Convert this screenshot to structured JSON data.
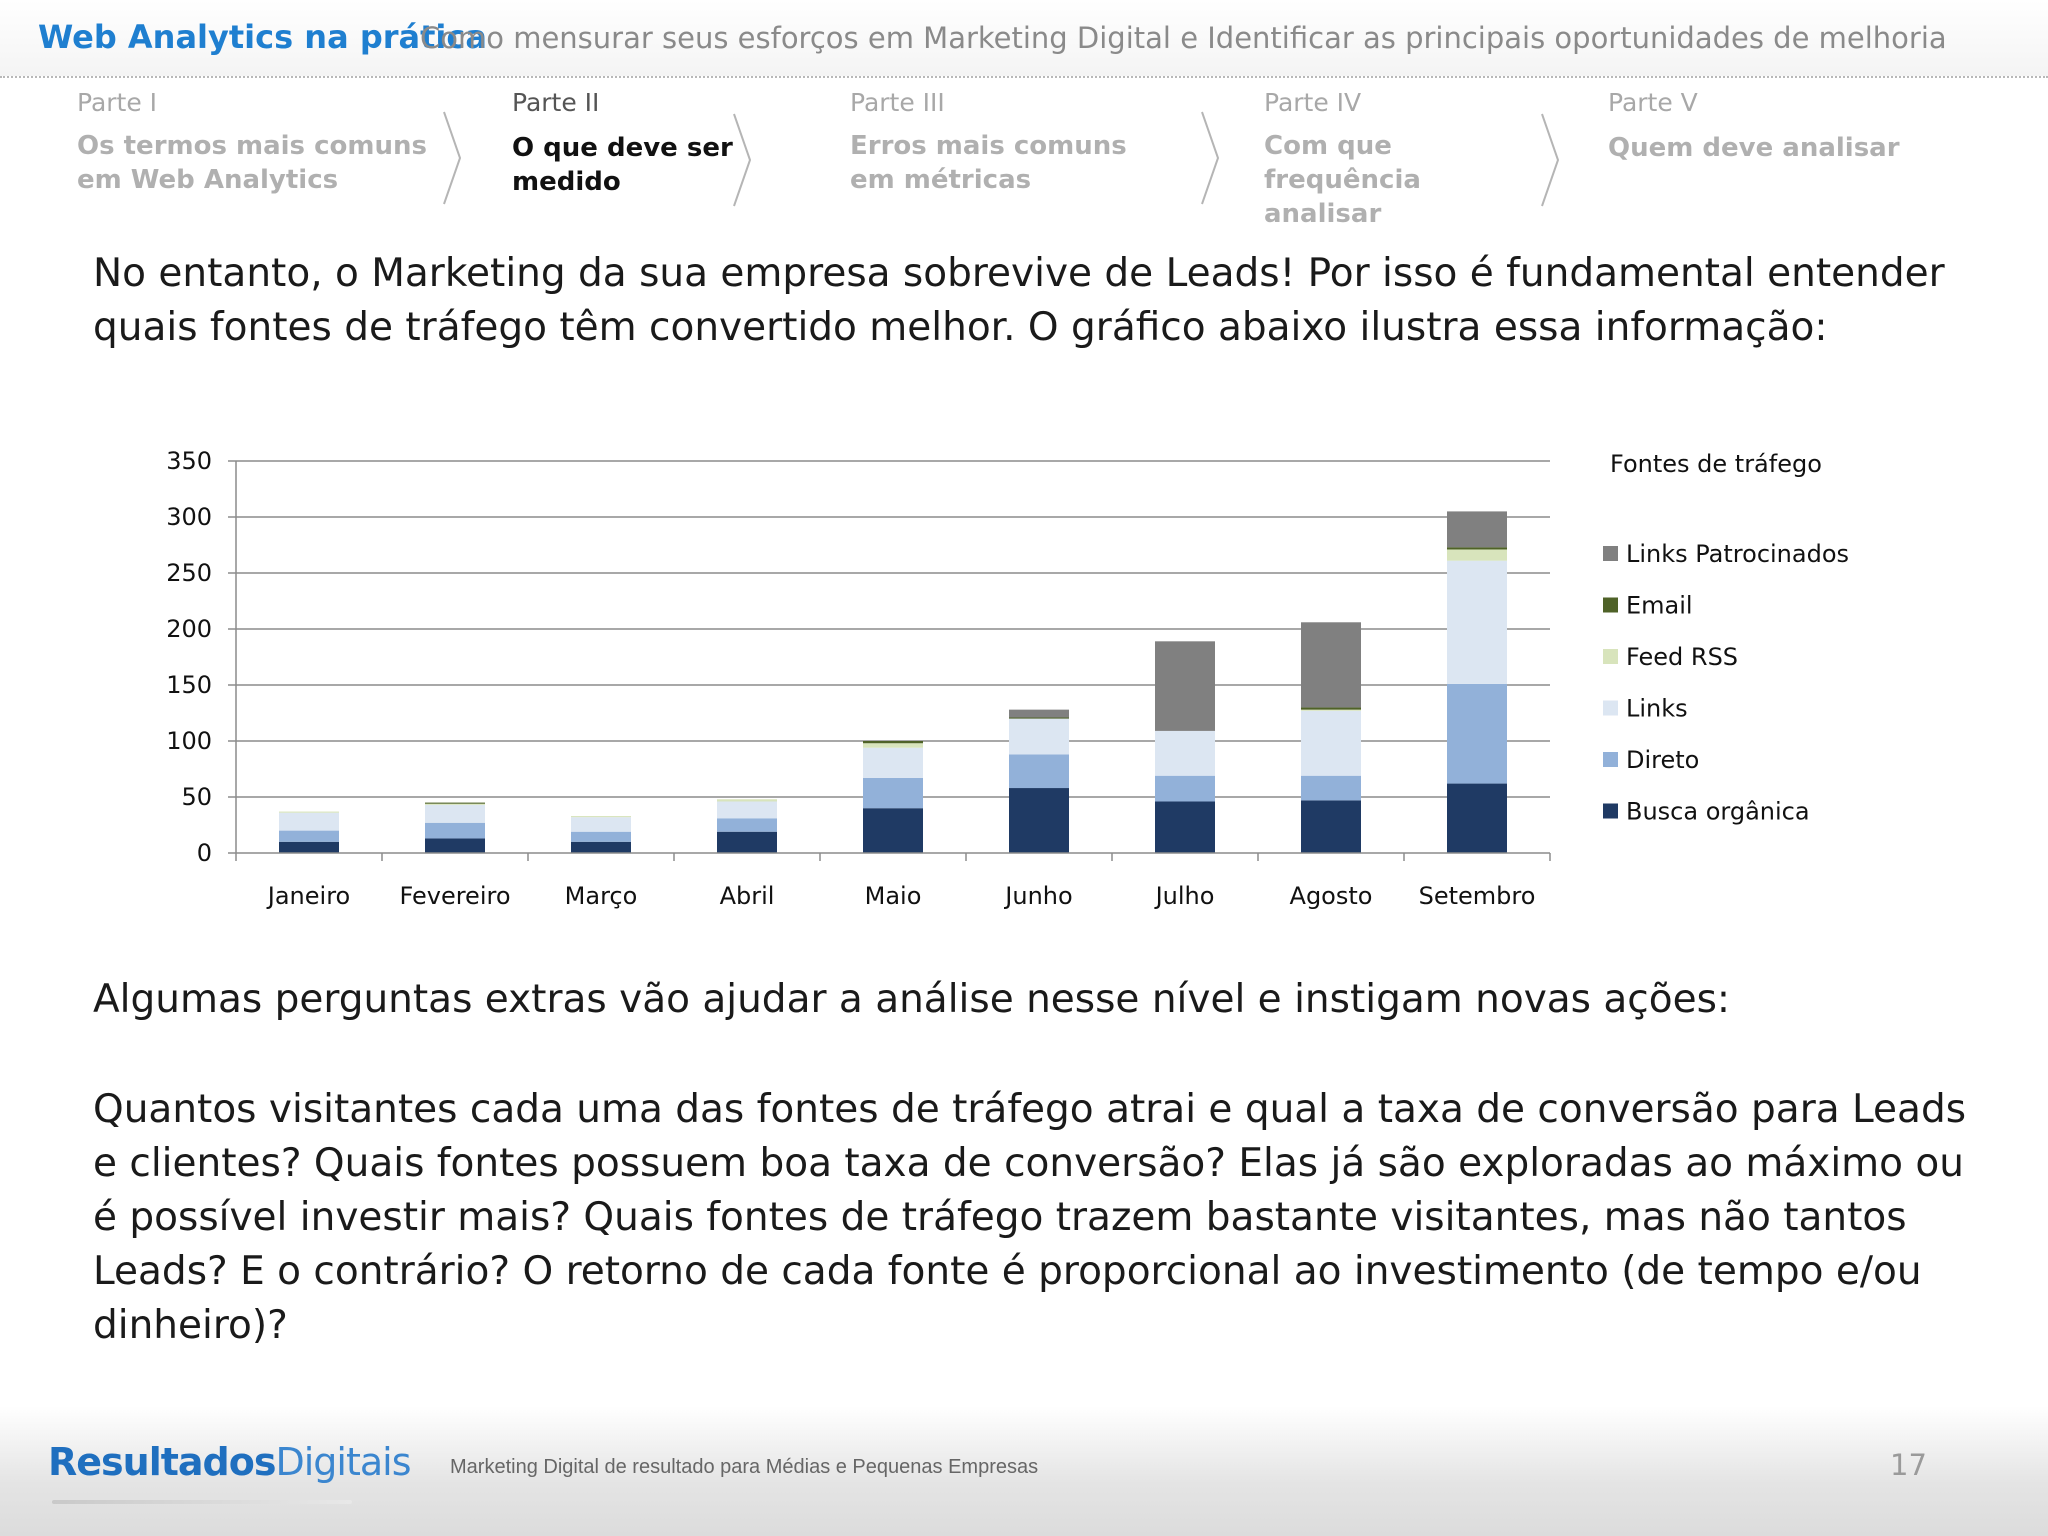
{
  "header": {
    "title": "Web Analytics na prática",
    "subtitle": "Como mensurar seus esforços em Marketing Digital e Identificar as principais oportunidades de melhoria"
  },
  "steps": [
    {
      "label": "Parte I",
      "title": "Os termos mais comuns em Web Analytics"
    },
    {
      "label": "Parte II",
      "title": "O que deve ser medido"
    },
    {
      "label": "Parte III",
      "title": "Erros mais comuns em métricas"
    },
    {
      "label": "Parte IV",
      "title": "Com que frequência analisar"
    },
    {
      "label": "Parte V",
      "title": "Quem deve analisar"
    }
  ],
  "intro": "No entanto, o Marketing da sua empresa sobrevive de Leads! Por isso é fundamental entender quais fontes de tráfego têm convertido melhor. O gráfico abaixo ilustra essa informação:",
  "question_intro": "Algumas perguntas extras vão ajudar a análise nesse nível e instigam novas ações:",
  "questions": "Quantos visitantes cada uma das fontes de tráfego atrai e qual a taxa de conversão para Leads e clientes? Quais fontes possuem boa taxa de conversão? Elas já são exploradas ao máximo ou é possível investir mais? Quais fontes de tráfego trazem bastante visitantes, mas não tantos Leads? E o contrário? O retorno de cada fonte é proporcional ao investimento (de tempo e/ou dinheiro)?",
  "chart_data": {
    "type": "bar",
    "stacked": true,
    "title": "",
    "xlabel": "",
    "ylabel": "",
    "ylim": [
      0,
      350
    ],
    "yticks": [
      0,
      50,
      100,
      150,
      200,
      250,
      300,
      350
    ],
    "grid": true,
    "legend_title": "Fontes de tráfego",
    "legend_position": "right",
    "categories": [
      "Janeiro",
      "Fevereiro",
      "Março",
      "Abril",
      "Maio",
      "Junho",
      "Julho",
      "Agosto",
      "Setembro"
    ],
    "series": [
      {
        "name": "Busca orgânica",
        "color": "#1f3a64",
        "values": [
          10,
          13,
          10,
          19,
          40,
          58,
          46,
          47,
          62
        ]
      },
      {
        "name": "Direto",
        "color": "#92b1d9",
        "values": [
          10,
          14,
          9,
          12,
          27,
          30,
          23,
          22,
          89
        ]
      },
      {
        "name": "Links",
        "color": "#dce6f2",
        "values": [
          16,
          16,
          13,
          15,
          27,
          32,
          40,
          58,
          110
        ]
      },
      {
        "name": "Feed RSS",
        "color": "#d8e4bc",
        "values": [
          1,
          1,
          1,
          2,
          4,
          0,
          0,
          1,
          10
        ]
      },
      {
        "name": "Email",
        "color": "#4f6228",
        "values": [
          0,
          1,
          0,
          0,
          2,
          1,
          0,
          2,
          2
        ]
      },
      {
        "name": "Links Patrocinados",
        "color": "#808080",
        "values": [
          0,
          0,
          0,
          0,
          0,
          7,
          80,
          76,
          32
        ]
      }
    ]
  },
  "footer": {
    "brand_a": "Resultados",
    "brand_b": "Digitais",
    "tagline": "Marketing Digital de resultado para Médias e Pequenas Empresas",
    "page_number": "17"
  }
}
